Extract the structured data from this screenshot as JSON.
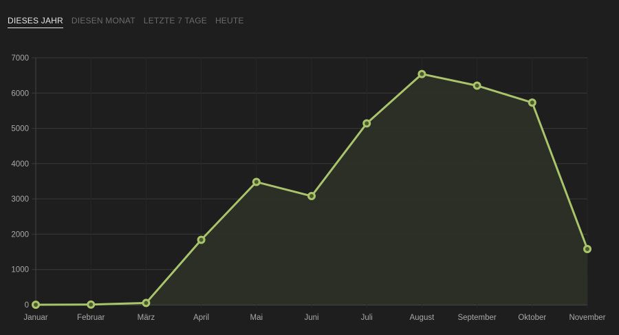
{
  "tabs": [
    {
      "label": "DIESES JAHR",
      "active": true
    },
    {
      "label": "DIESEN MONAT",
      "active": false
    },
    {
      "label": "LETZTE 7 TAGE",
      "active": false
    },
    {
      "label": "HEUTE",
      "active": false
    }
  ],
  "colors": {
    "background": "#1e1e1e",
    "line": "#a9c46c",
    "fill": "#2c3126",
    "point_fill": "#4a5a2a",
    "grid": "#3a3a3a",
    "tick_text": "#a8a8a8"
  },
  "chart_data": {
    "type": "area",
    "title": "",
    "xlabel": "",
    "ylabel": "",
    "categories": [
      "Januar",
      "Februar",
      "März",
      "April",
      "Mai",
      "Juni",
      "Juli",
      "August",
      "September",
      "Oktober",
      "November"
    ],
    "series": [
      {
        "name": "Dieses Jahr",
        "values": [
          0,
          5,
          50,
          1840,
          3480,
          3080,
          5140,
          6540,
          6210,
          5730,
          1580
        ]
      }
    ],
    "ylim": [
      0,
      7000
    ],
    "yticks": [
      0,
      1000,
      2000,
      3000,
      4000,
      5000,
      6000,
      7000
    ],
    "grid": true,
    "legend": "none"
  }
}
